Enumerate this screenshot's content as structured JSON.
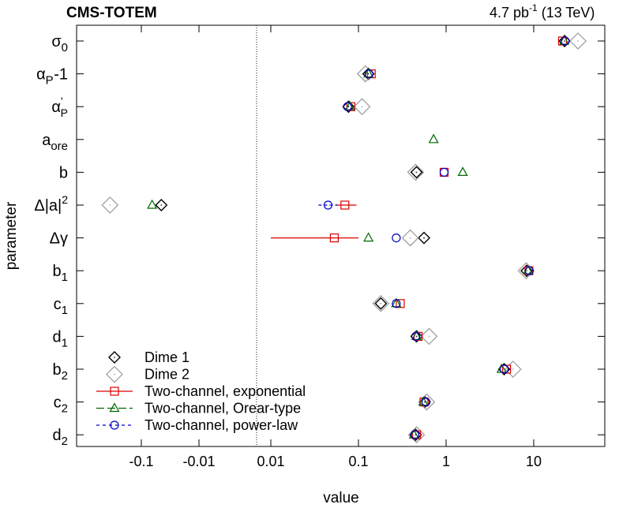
{
  "header": {
    "experiment": "CMS-TOTEM",
    "lumi": "4.7 pb",
    "lumi_exp": "-1",
    "energy": "(13 TeV)"
  },
  "chart_data": {
    "type": "scatter",
    "xlabel": "value",
    "ylabel": "parameter",
    "xscale": "symlog (separate negative and positive log segments)",
    "x_tick_labels_neg": [
      "-0.1",
      "-0.01"
    ],
    "x_tick_values_neg": [
      -0.1,
      -0.01
    ],
    "x_tick_labels_pos": [
      "0.01",
      "0.1",
      "1",
      "10"
    ],
    "x_tick_values_pos": [
      0.01,
      0.1,
      1,
      10
    ],
    "categories": [
      {
        "id": "sigma0",
        "sym": "σ",
        "sub": "0",
        "sup": ""
      },
      {
        "id": "alphaP",
        "sym": "α",
        "sub": "P",
        "sup": "",
        "tail": "-1"
      },
      {
        "id": "alphaPprime",
        "sym": "α",
        "sub": "P",
        "sup": "'"
      },
      {
        "id": "aore",
        "sym": "a",
        "sub": "ore",
        "sup": ""
      },
      {
        "id": "b",
        "sym": "b",
        "sub": "",
        "sup": ""
      },
      {
        "id": "deltaA2",
        "sym": "Δ|a|",
        "sub": "",
        "sup": "2"
      },
      {
        "id": "deltaGamma",
        "sym": "Δγ",
        "sub": "",
        "sup": ""
      },
      {
        "id": "b1",
        "sym": "b",
        "sub": "1",
        "sup": ""
      },
      {
        "id": "c1",
        "sym": "c",
        "sub": "1",
        "sup": ""
      },
      {
        "id": "d1",
        "sym": "d",
        "sub": "1",
        "sup": ""
      },
      {
        "id": "b2",
        "sym": "b",
        "sub": "2",
        "sup": ""
      },
      {
        "id": "c2",
        "sym": "c",
        "sub": "2",
        "sup": ""
      },
      {
        "id": "d2",
        "sym": "d",
        "sub": "2",
        "sup": ""
      }
    ],
    "series": [
      {
        "name": "Dime 1",
        "marker": "diamond-small",
        "color": "#000000",
        "points": [
          {
            "cat": 0,
            "x": 22.5
          },
          {
            "cat": 1,
            "x": 0.13
          },
          {
            "cat": 2,
            "x": 0.077
          },
          {
            "cat": 4,
            "x": 0.46
          },
          {
            "cat": 5,
            "x": -0.045
          },
          {
            "cat": 6,
            "x": 0.56
          },
          {
            "cat": 7,
            "x": 8.3
          },
          {
            "cat": 8,
            "x": 0.18
          },
          {
            "cat": 9,
            "x": 0.46
          },
          {
            "cat": 10,
            "x": 4.6
          },
          {
            "cat": 11,
            "x": 0.57
          },
          {
            "cat": 12,
            "x": 0.45
          }
        ]
      },
      {
        "name": "Dime 2",
        "marker": "diamond-large",
        "color": "#999999",
        "points": [
          {
            "cat": 0,
            "x": 32
          },
          {
            "cat": 1,
            "x": 0.12
          },
          {
            "cat": 2,
            "x": 0.11
          },
          {
            "cat": 4,
            "x": 0.45
          },
          {
            "cat": 5,
            "x": -0.35
          },
          {
            "cat": 6,
            "x": 0.39
          },
          {
            "cat": 7,
            "x": 8.2
          },
          {
            "cat": 8,
            "x": 0.18
          },
          {
            "cat": 9,
            "x": 0.64
          },
          {
            "cat": 10,
            "x": 5.8
          },
          {
            "cat": 11,
            "x": 0.6
          },
          {
            "cat": 12,
            "x": 0.46
          }
        ]
      },
      {
        "name": "Two-channel, exponential",
        "marker": "square",
        "color": "#dd0000",
        "points": [
          {
            "cat": 0,
            "x": 21.3
          },
          {
            "cat": 1,
            "x": 0.14
          },
          {
            "cat": 2,
            "x": 0.082
          },
          {
            "cat": 4,
            "x": 0.95
          },
          {
            "cat": 5,
            "x": 0.07,
            "xerr": [
              0.055,
              0.095
            ]
          },
          {
            "cat": 6,
            "x": 0.053,
            "xerr": [
              0.01,
              0.1
            ]
          },
          {
            "cat": 7,
            "x": 8.8
          },
          {
            "cat": 8,
            "x": 0.3
          },
          {
            "cat": 9,
            "x": 0.48
          },
          {
            "cat": 10,
            "x": 4.9
          },
          {
            "cat": 11,
            "x": 0.56
          },
          {
            "cat": 12,
            "x": 0.46
          }
        ]
      },
      {
        "name": "Two-channel, Orear-type",
        "marker": "triangle",
        "color": "#006600",
        "points": [
          {
            "cat": 0,
            "x": 22.3
          },
          {
            "cat": 1,
            "x": 0.13
          },
          {
            "cat": 2,
            "x": 0.08
          },
          {
            "cat": 3,
            "x": 0.72
          },
          {
            "cat": 4,
            "x": 1.55
          },
          {
            "cat": 5,
            "x": -0.065
          },
          {
            "cat": 6,
            "x": 0.13
          },
          {
            "cat": 7,
            "x": 8.6
          },
          {
            "cat": 8,
            "x": 0.27
          },
          {
            "cat": 9,
            "x": 0.46
          },
          {
            "cat": 10,
            "x": 4.3
          },
          {
            "cat": 11,
            "x": 0.55
          },
          {
            "cat": 12,
            "x": 0.43
          }
        ]
      },
      {
        "name": "Two-channel, power-law",
        "marker": "circle",
        "color": "#0000cc",
        "points": [
          {
            "cat": 0,
            "x": 22.8
          },
          {
            "cat": 1,
            "x": 0.132
          },
          {
            "cat": 2,
            "x": 0.075
          },
          {
            "cat": 4,
            "x": 0.95
          },
          {
            "cat": 5,
            "x": 0.045,
            "xerr": [
              0.035,
              0.058
            ]
          },
          {
            "cat": 6,
            "x": 0.27
          },
          {
            "cat": 7,
            "x": 8.9
          },
          {
            "cat": 8,
            "x": 0.27
          },
          {
            "cat": 9,
            "x": 0.45
          },
          {
            "cat": 10,
            "x": 4.6
          },
          {
            "cat": 11,
            "x": 0.59
          },
          {
            "cat": 12,
            "x": 0.44
          }
        ]
      }
    ],
    "legend_position": "bottom-left",
    "grid": false,
    "divider_line": "dotted vertical line between negative and positive segments"
  }
}
